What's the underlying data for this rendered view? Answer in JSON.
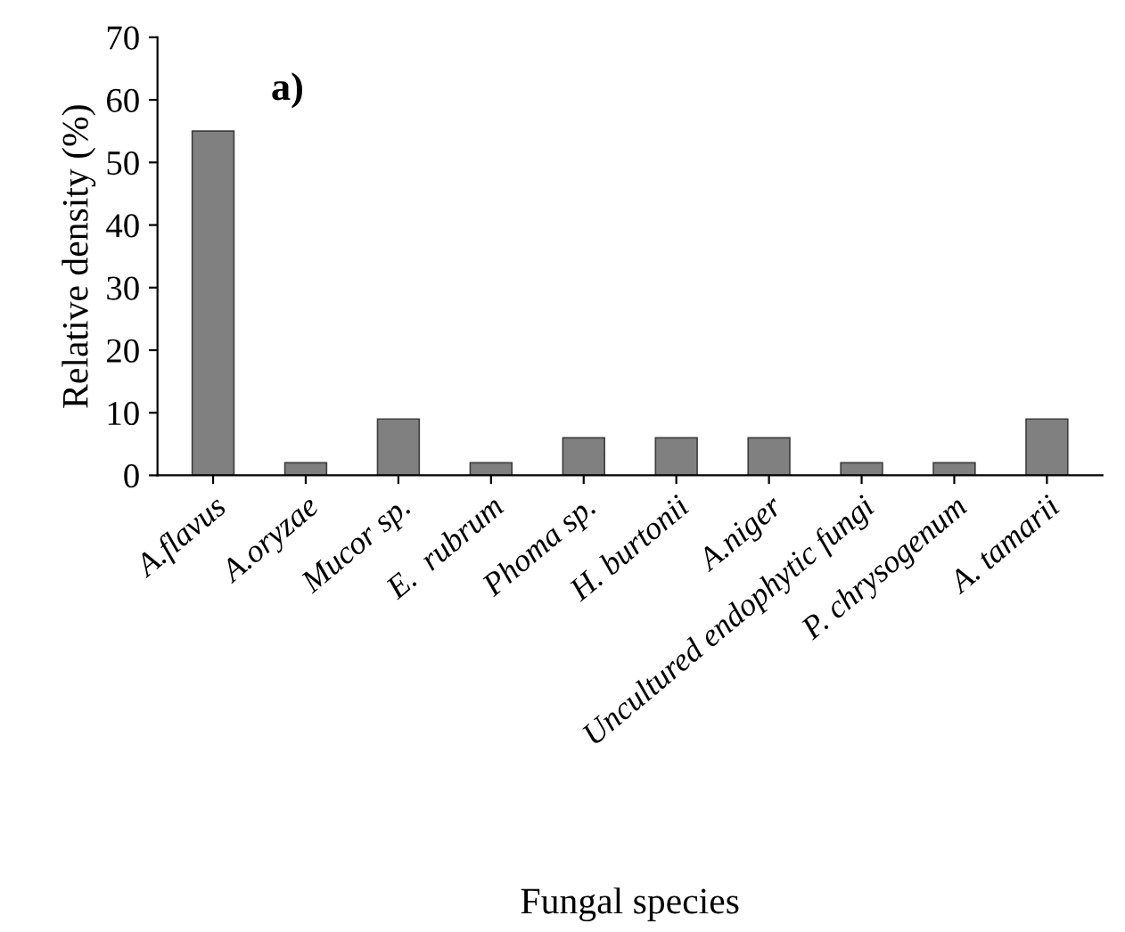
{
  "chart_data": {
    "type": "bar",
    "xlabel": "Fungal species",
    "ylabel": "Relative density (%)",
    "annotations": [
      "a)"
    ],
    "categories": [
      "A.flavus",
      "A.oryzae",
      "Mucor sp.",
      "E.  rubrum",
      "Phoma sp.",
      "H. burtonii",
      "A.niger",
      "Uncultured endophytic fungi",
      "P. chrysogenum",
      "A. tamarii"
    ],
    "values": [
      55,
      2,
      9,
      2,
      6,
      6,
      6,
      2,
      2,
      9
    ],
    "color": "#808080",
    "ylim": [
      0,
      70
    ],
    "yticks": [
      0,
      10,
      20,
      30,
      40,
      50,
      60,
      70
    ],
    "grid": false,
    "legend": false
  }
}
